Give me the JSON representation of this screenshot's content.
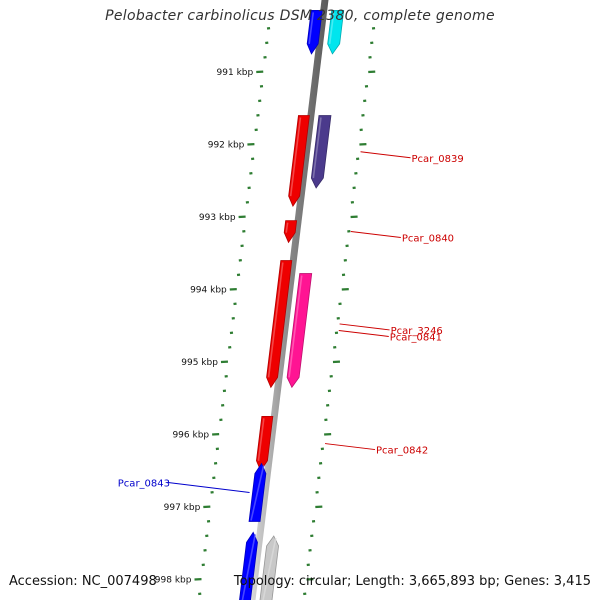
{
  "title": "Pelobacter carbinolicus DSM 2380, complete genome",
  "accession": "Accession: NC_007498",
  "topology": "Topology: circular; Length: 3,665,893 bp; Genes: 3,415",
  "colors": {
    "backbone": "#8a8a8a",
    "tick": "#2e7d32",
    "scale_label": "#111111",
    "label_red": "#cc0000",
    "label_blue": "#0000cc"
  },
  "scale_ticks": [
    {
      "label": "991 kbp",
      "kbp": 991
    },
    {
      "label": "992 kbp",
      "kbp": 992
    },
    {
      "label": "993 kbp",
      "kbp": 993
    },
    {
      "label": "994 kbp",
      "kbp": 994
    },
    {
      "label": "995 kbp",
      "kbp": 995
    },
    {
      "label": "996 kbp",
      "kbp": 996
    },
    {
      "label": "997 kbp",
      "kbp": 997
    },
    {
      "label": "998 kbp",
      "kbp": 998
    }
  ],
  "genes": [
    {
      "label": "",
      "strand": "+",
      "lane": "outer",
      "start_kbp": 990.15,
      "end_kbp": 990.75,
      "color": "#00e5ee"
    },
    {
      "label": "",
      "strand": "+",
      "lane": "inner",
      "start_kbp": 990.15,
      "end_kbp": 990.75,
      "color": "#0000ff"
    },
    {
      "label": "",
      "strand": "+",
      "lane": "inner",
      "start_kbp": 991.6,
      "end_kbp": 992.85,
      "color": "#ee0000"
    },
    {
      "label": "Pcar_0839",
      "strand": "+",
      "lane": "outer",
      "start_kbp": 991.6,
      "end_kbp": 992.6,
      "color": "#4b3a8c"
    },
    {
      "label": "Pcar_0840",
      "strand": "+",
      "lane": "inner",
      "start_kbp": 993.05,
      "end_kbp": 993.35,
      "color": "#ee0000"
    },
    {
      "label": "Pcar_3246",
      "strand": "+",
      "lane": "inner",
      "start_kbp": 993.6,
      "end_kbp": 995.35,
      "color": "#ee0000"
    },
    {
      "label": "Pcar_0841",
      "strand": "+",
      "lane": "outer",
      "start_kbp": 993.78,
      "end_kbp": 995.35,
      "color": "#ff1493"
    },
    {
      "label": "Pcar_0842",
      "strand": "+",
      "lane": "inner",
      "start_kbp": 995.75,
      "end_kbp": 996.5,
      "color": "#ee0000"
    },
    {
      "label": "Pcar_0843",
      "strand": "-",
      "lane": "inner",
      "start_kbp": 996.4,
      "end_kbp": 997.2,
      "color": "#0000ff"
    },
    {
      "label": "",
      "strand": "-",
      "lane": "outer",
      "start_kbp": 997.4,
      "end_kbp": 998.5,
      "color": "#c8c8c8"
    },
    {
      "label": "",
      "strand": "-",
      "lane": "inner",
      "start_kbp": 997.35,
      "end_kbp": 998.5,
      "color": "#0000ff"
    }
  ]
}
